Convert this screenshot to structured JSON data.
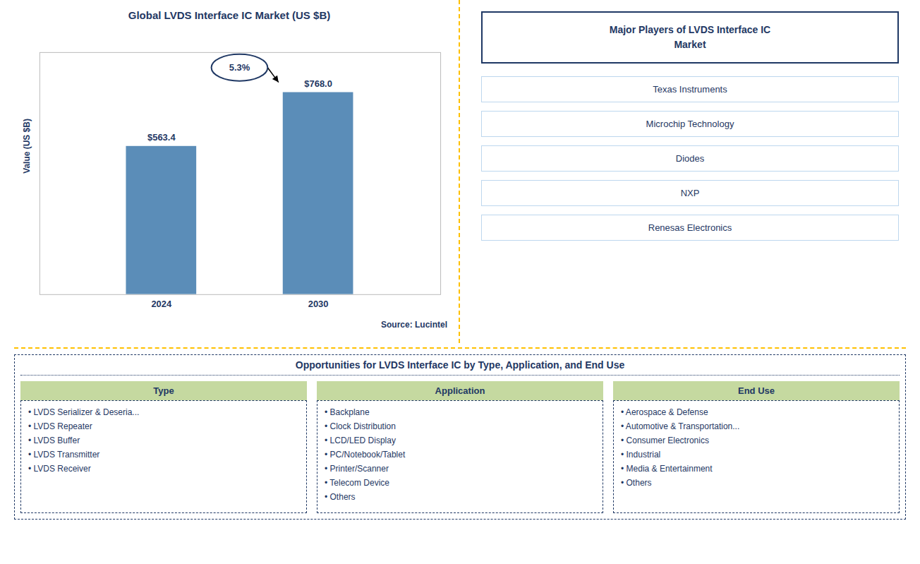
{
  "chart_data": {
    "type": "bar",
    "title": "Global LVDS Interface IC Market (US $B)",
    "categories": [
      "2024",
      "2030"
    ],
    "values": [
      563.4,
      768.0
    ],
    "value_labels": [
      "$563.4",
      "$768.0"
    ],
    "data_labels": true,
    "color": "#5B8DB8",
    "ylabel": "Value (US $B)",
    "ylim": [
      0,
      920
    ],
    "tick_labels": "x",
    "annotations": [
      "5.3%",
      "Source: Lucintel"
    ]
  },
  "panels": [
    {
      "title": "Major Players of LVDS Interface IC\nMarket",
      "items": [
        "Texas Instruments",
        "Microchip Technology",
        "Diodes",
        "NXP",
        "Renesas Electronics"
      ]
    },
    {
      "title": "Opportunities for LVDS Interface IC by Type, Application, and End Use",
      "columns": [
        {
          "header": "Type",
          "items": [
            "• LVDS Serializer & Deseria...",
            "• LVDS Repeater",
            "• LVDS Buffer",
            "• LVDS Transmitter",
            "• LVDS Receiver"
          ]
        },
        {
          "header": "Application",
          "items": [
            "• Backplane",
            "• Clock Distribution",
            "• LCD/LED Display",
            "• PC/Notebook/Tablet",
            "• Printer/Scanner",
            "• Telecom Device",
            "• Others"
          ]
        },
        {
          "header": "End Use",
          "items": [
            "• Aerospace & Defense",
            "• Automotive & Transportation...",
            "• Consumer Electronics",
            "• Industrial",
            "• Media & Entertainment",
            "• Others"
          ]
        }
      ]
    }
  ]
}
